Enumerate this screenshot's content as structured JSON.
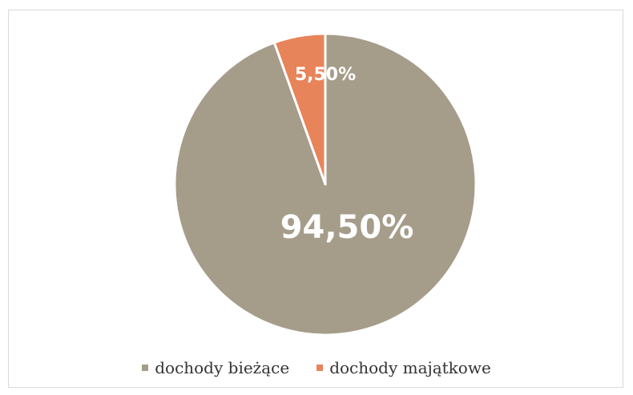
{
  "chart_data": {
    "type": "pie",
    "title": "",
    "slices": [
      {
        "name": "dochody bieżące",
        "value": 94.5,
        "label": "94,50%",
        "color": "#a59c8a"
      },
      {
        "name": "dochody majątkowe",
        "value": 5.5,
        "label": "5,50%",
        "color": "#e8845a"
      }
    ],
    "legend_position": "bottom",
    "start_angle": "12 o'clock",
    "direction": "clockwise for dochody majątkowe counterclockwise start"
  }
}
